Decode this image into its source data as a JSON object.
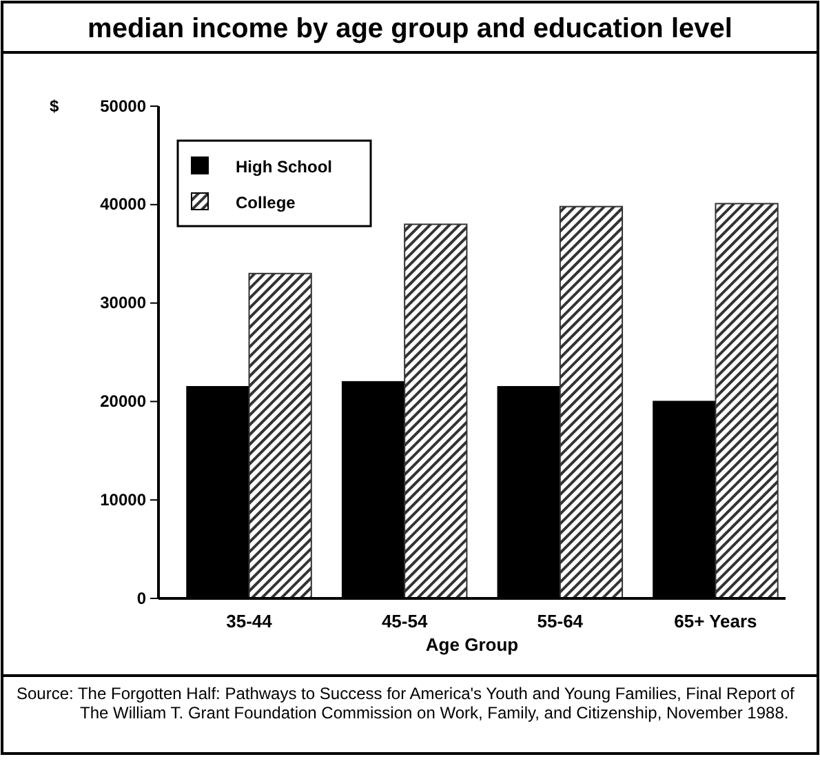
{
  "chart_data": {
    "type": "bar",
    "title": "median income by age group and education level",
    "xlabel": "Age Group",
    "ylabel": "$",
    "categories": [
      "35-44",
      "45-54",
      "55-64",
      "65+ Years"
    ],
    "series": [
      {
        "name": "High School",
        "color": "#000000",
        "values": [
          21500,
          22000,
          21500,
          20000
        ]
      },
      {
        "name": "College",
        "color": "#333333",
        "values": [
          33000,
          38000,
          39800,
          40100
        ]
      }
    ],
    "ylim": [
      0,
      50000
    ],
    "yticks": [
      0,
      10000,
      20000,
      30000,
      40000,
      50000
    ],
    "grid": false,
    "legend": "top left",
    "annotations": [
      "Source: The Forgotten Half:  Pathways to Success for America's Youth and Young Families, Final Report of The William T. Grant Foundation Commission on Work, Family, and Citizenship, November 1988."
    ]
  }
}
